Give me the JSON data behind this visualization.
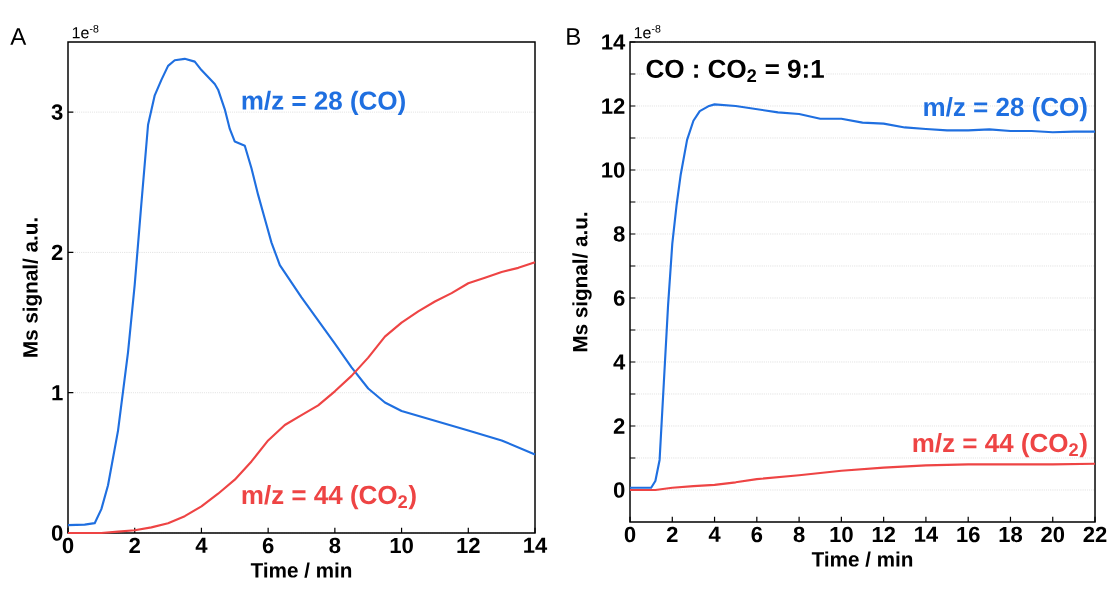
{
  "chart_data": [
    {
      "type": "line",
      "title": "A",
      "xlabel": "Time / min",
      "ylabel": "Ms signal/ a.u.",
      "annotations": [
        "1e$^{-8}$"
      ],
      "xlim": [
        0,
        14
      ],
      "ylim": [
        0,
        3.5
      ],
      "xticks": [
        0,
        2,
        4,
        6,
        8,
        10,
        12,
        14
      ],
      "yticks": [
        0,
        1,
        2,
        3
      ],
      "grid": "y",
      "series": [
        {
          "name": "m/z = 28 (CO)",
          "color": "#1f6fe0",
          "x": [
            0,
            0.5,
            0.8,
            1.0,
            1.2,
            1.5,
            1.8,
            2.0,
            2.2,
            2.4,
            2.6,
            2.8,
            3.0,
            3.2,
            3.5,
            3.8,
            4.0,
            4.4,
            4.5,
            4.7,
            4.85,
            5.0,
            5.3,
            5.5,
            5.7,
            5.9,
            6.1,
            6.35,
            7,
            8,
            8.5,
            9,
            9.5,
            10,
            11,
            12,
            13,
            14
          ],
          "values": [
            0.056,
            0.06,
            0.07,
            0.17,
            0.34,
            0.73,
            1.29,
            1.77,
            2.35,
            2.91,
            3.12,
            3.23,
            3.33,
            3.37,
            3.38,
            3.36,
            3.3,
            3.2,
            3.16,
            3.02,
            2.88,
            2.79,
            2.76,
            2.6,
            2.41,
            2.24,
            2.07,
            1.91,
            1.68,
            1.35,
            1.18,
            1.03,
            0.93,
            0.87,
            0.8,
            0.73,
            0.66,
            0.56
          ]
        },
        {
          "name": "m/z = 44 (CO$_{2}$)",
          "color": "#ee4444",
          "x": [
            0,
            1,
            1.5,
            2,
            2.5,
            3,
            3.5,
            4,
            4.5,
            5,
            5.5,
            6,
            6.5,
            7,
            7.5,
            8,
            8.5,
            9,
            9.5,
            10,
            10.5,
            11,
            11.5,
            12,
            12.5,
            13,
            13.5,
            14
          ],
          "values": [
            0,
            0,
            0.01,
            0.02,
            0.04,
            0.07,
            0.12,
            0.19,
            0.28,
            0.38,
            0.51,
            0.66,
            0.77,
            0.84,
            0.91,
            1.01,
            1.12,
            1.25,
            1.4,
            1.5,
            1.58,
            1.65,
            1.71,
            1.78,
            1.82,
            1.86,
            1.89,
            1.93
          ]
        }
      ]
    },
    {
      "type": "line",
      "title": "B",
      "xlabel": "Time / min",
      "ylabel": "Ms signal/ a.u.",
      "annotations": [
        "1e$^{-8}$",
        "CO : CO$_{2}$ = 9:1"
      ],
      "xlim": [
        0,
        22
      ],
      "ylim": [
        -1,
        14
      ],
      "xticks": [
        0,
        2,
        4,
        6,
        8,
        10,
        12,
        14,
        16,
        18,
        20,
        22
      ],
      "yticks": [
        0,
        {
          "value": 1,
          "label": null
        },
        2,
        {
          "value": 3,
          "label": null
        },
        4,
        {
          "value": 5,
          "label": null
        },
        6,
        {
          "value": 7,
          "label": null
        },
        8,
        {
          "value": 9,
          "label": null
        },
        10,
        {
          "value": 11,
          "label": null
        },
        12,
        {
          "value": 13,
          "label": null
        },
        14
      ],
      "grid": "y",
      "series": [
        {
          "name": "m/z = 28 (CO)",
          "color": "#1f6fe0",
          "x": [
            0,
            1.0,
            1.2,
            1.4,
            1.6,
            1.8,
            2.0,
            2.2,
            2.4,
            2.7,
            3.0,
            3.3,
            3.7,
            4,
            5,
            6,
            7,
            8,
            9,
            10,
            11,
            12,
            13,
            14,
            15,
            16,
            17,
            18,
            19,
            20,
            21,
            22
          ],
          "values": [
            0.07,
            0.07,
            0.28,
            0.94,
            3.35,
            5.76,
            7.69,
            8.89,
            9.86,
            10.94,
            11.54,
            11.84,
            11.99,
            12.05,
            12.0,
            11.9,
            11.8,
            11.75,
            11.6,
            11.6,
            11.48,
            11.45,
            11.33,
            11.28,
            11.24,
            11.24,
            11.27,
            11.22,
            11.22,
            11.18,
            11.2,
            11.2
          ]
        },
        {
          "name": "m/z = 44 (CO$_{2}$)",
          "color": "#ee4444",
          "x": [
            0,
            1.2,
            2,
            3,
            4,
            5,
            6,
            8,
            10,
            12,
            14,
            16,
            18,
            20,
            22
          ],
          "values": [
            0,
            0,
            0.07,
            0.12,
            0.16,
            0.24,
            0.34,
            0.46,
            0.6,
            0.7,
            0.77,
            0.8,
            0.8,
            0.8,
            0.82
          ]
        }
      ]
    }
  ]
}
